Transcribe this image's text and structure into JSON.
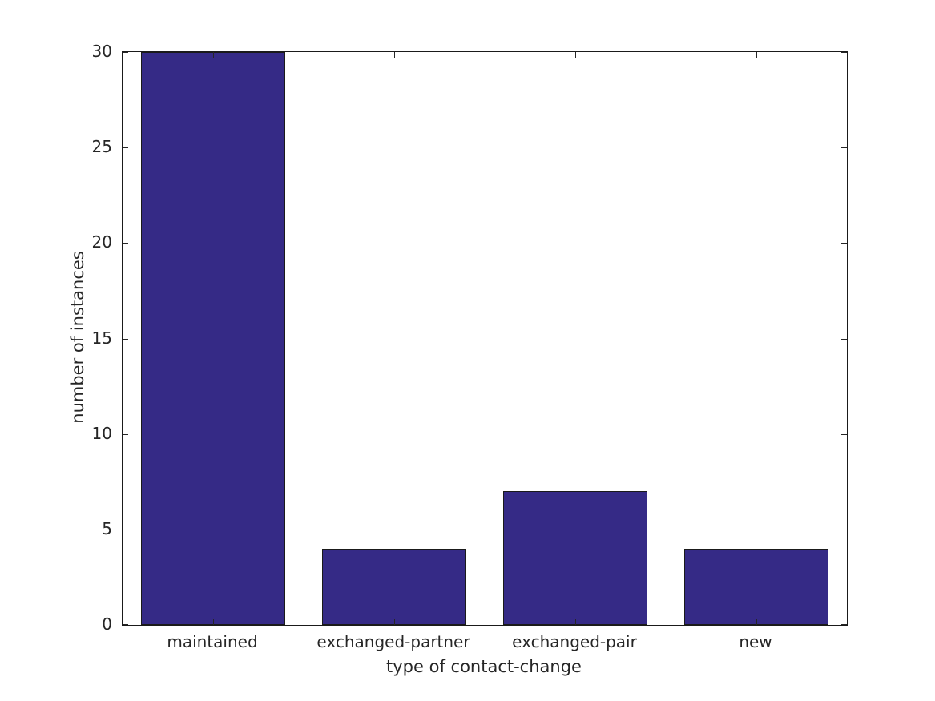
{
  "chart_data": {
    "type": "bar",
    "categories": [
      "maintained",
      "exchanged-partner",
      "exchanged-pair",
      "new"
    ],
    "values": [
      30,
      4,
      7,
      4
    ],
    "title": "",
    "xlabel": "type of contact-change",
    "ylabel": "number of instances",
    "ylim": [
      0,
      30
    ],
    "yticks": [
      0,
      5,
      10,
      15,
      20,
      25,
      30
    ],
    "bar_width_fraction": 0.8,
    "grid": false,
    "legend": false,
    "tick_direction": "in",
    "ticks_mirrored_all_sides": true,
    "colors": {
      "bar_fill": "#352a86",
      "bar_edge": "#1a1a1a",
      "frame": "#1a1a1a",
      "text": "#262626",
      "background": "#ffffff"
    }
  }
}
